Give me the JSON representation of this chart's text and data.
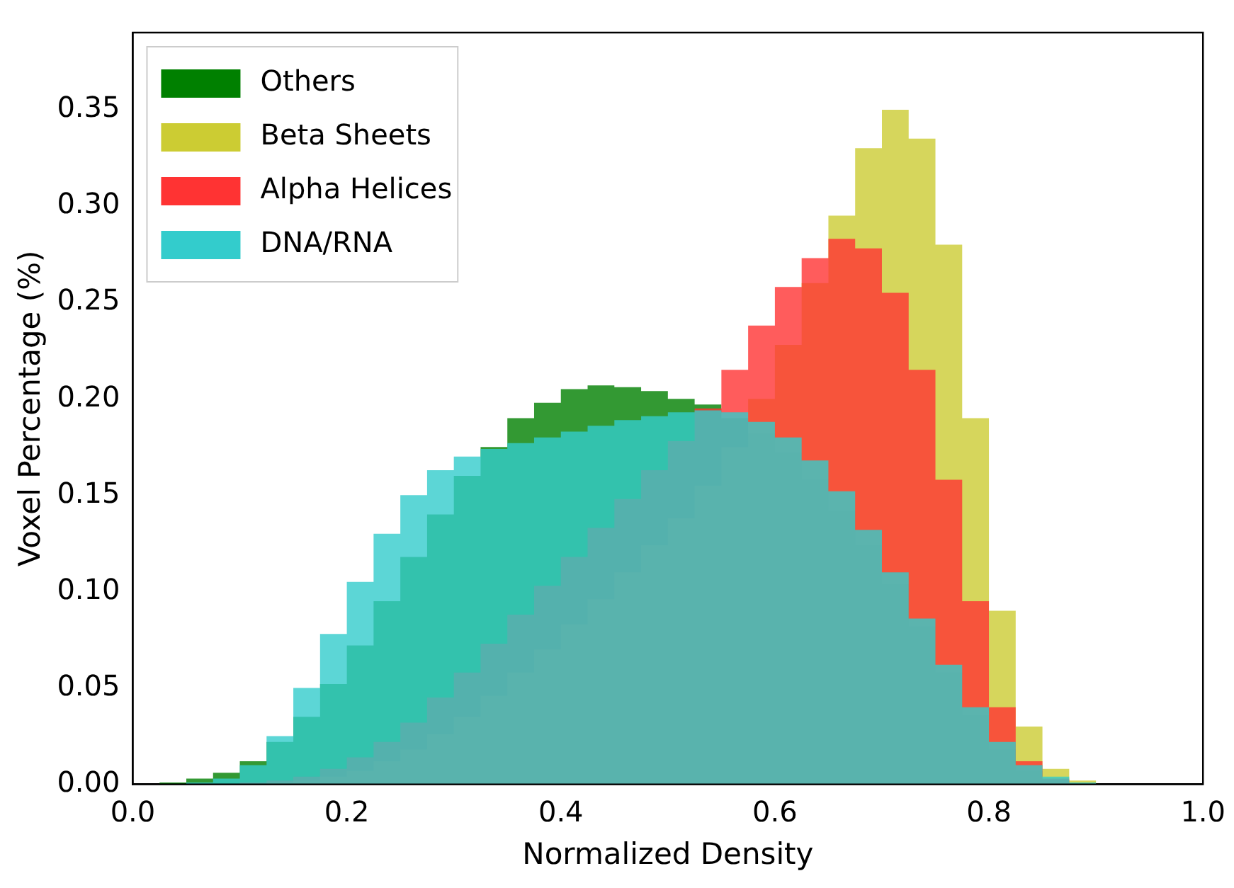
{
  "chart_data": {
    "type": "histogram",
    "xlabel": "Normalized Density",
    "ylabel": "Voxel Percentage (%)",
    "bins": [
      0,
      0.025,
      0.05,
      0.075,
      0.1,
      0.125,
      0.15,
      0.175,
      0.2,
      0.225,
      0.25,
      0.275,
      0.3,
      0.325,
      0.35,
      0.375,
      0.4,
      0.425,
      0.45,
      0.475,
      0.5,
      0.525,
      0.55,
      0.575,
      0.6,
      0.625,
      0.65,
      0.675,
      0.7,
      0.725,
      0.75,
      0.775,
      0.8,
      0.825,
      0.85,
      0.875,
      0.9,
      0.925,
      0.95,
      0.975,
      1
    ],
    "series": [
      {
        "name": "Others",
        "color": "#008000",
        "values": [
          0,
          0.001,
          0.003,
          0.006,
          0.012,
          0.022,
          0.035,
          0.052,
          0.072,
          0.095,
          0.118,
          0.14,
          0.16,
          0.175,
          0.19,
          0.198,
          0.205,
          0.207,
          0.206,
          0.204,
          0.2,
          0.197,
          0.19,
          0.182,
          0.172,
          0.158,
          0.142,
          0.124,
          0.104,
          0.082,
          0.058,
          0.036,
          0.018,
          0.007,
          0.002,
          0,
          0,
          0,
          0,
          0
        ]
      },
      {
        "name": "Beta Sheets",
        "color": "#cccc33",
        "values": [
          0,
          0,
          0,
          0,
          0,
          0.001,
          0.002,
          0.004,
          0.007,
          0.012,
          0.018,
          0.026,
          0.035,
          0.046,
          0.058,
          0.07,
          0.083,
          0.096,
          0.11,
          0.124,
          0.138,
          0.155,
          0.175,
          0.2,
          0.228,
          0.26,
          0.295,
          0.33,
          0.35,
          0.335,
          0.28,
          0.19,
          0.09,
          0.03,
          0.008,
          0.002,
          0,
          0,
          0,
          0
        ]
      },
      {
        "name": "Alpha Helices",
        "color": "#ff3333",
        "values": [
          0,
          0,
          0,
          0,
          0.001,
          0.002,
          0.004,
          0.008,
          0.014,
          0.022,
          0.032,
          0.045,
          0.058,
          0.073,
          0.088,
          0.103,
          0.118,
          0.133,
          0.148,
          0.163,
          0.178,
          0.195,
          0.215,
          0.238,
          0.258,
          0.273,
          0.283,
          0.278,
          0.255,
          0.215,
          0.158,
          0.095,
          0.04,
          0.012,
          0.003,
          0,
          0,
          0,
          0,
          0
        ]
      },
      {
        "name": "DNA/RNA",
        "color": "#33cccc",
        "values": [
          0,
          0,
          0.001,
          0.003,
          0.01,
          0.025,
          0.05,
          0.078,
          0.105,
          0.13,
          0.15,
          0.163,
          0.17,
          0.174,
          0.177,
          0.18,
          0.183,
          0.186,
          0.189,
          0.191,
          0.193,
          0.194,
          0.193,
          0.188,
          0.18,
          0.168,
          0.152,
          0.132,
          0.11,
          0.086,
          0.062,
          0.04,
          0.022,
          0.01,
          0.004,
          0.001,
          0,
          0,
          0,
          0
        ]
      }
    ],
    "xlim": [
      0,
      1
    ],
    "xticks": [
      {
        "value": 0,
        "label": "0.0"
      },
      {
        "value": 0.2,
        "label": "0.2"
      },
      {
        "value": 0.4,
        "label": "0.4"
      },
      {
        "value": 0.6,
        "label": "0.6"
      },
      {
        "value": 0.8,
        "label": "0.8"
      },
      {
        "value": 1,
        "label": "1.0"
      }
    ],
    "ylim": [
      0,
      0.39
    ],
    "yticks": [
      {
        "value": 0,
        "label": "0.00"
      },
      {
        "value": 0.05,
        "label": "0.05"
      },
      {
        "value": 0.1,
        "label": "0.10"
      },
      {
        "value": 0.15,
        "label": "0.15"
      },
      {
        "value": 0.2,
        "label": "0.20"
      },
      {
        "value": 0.25,
        "label": "0.25"
      },
      {
        "value": 0.3,
        "label": "0.30"
      },
      {
        "value": 0.35,
        "label": "0.35"
      }
    ],
    "grid": false,
    "legend": "top left"
  }
}
